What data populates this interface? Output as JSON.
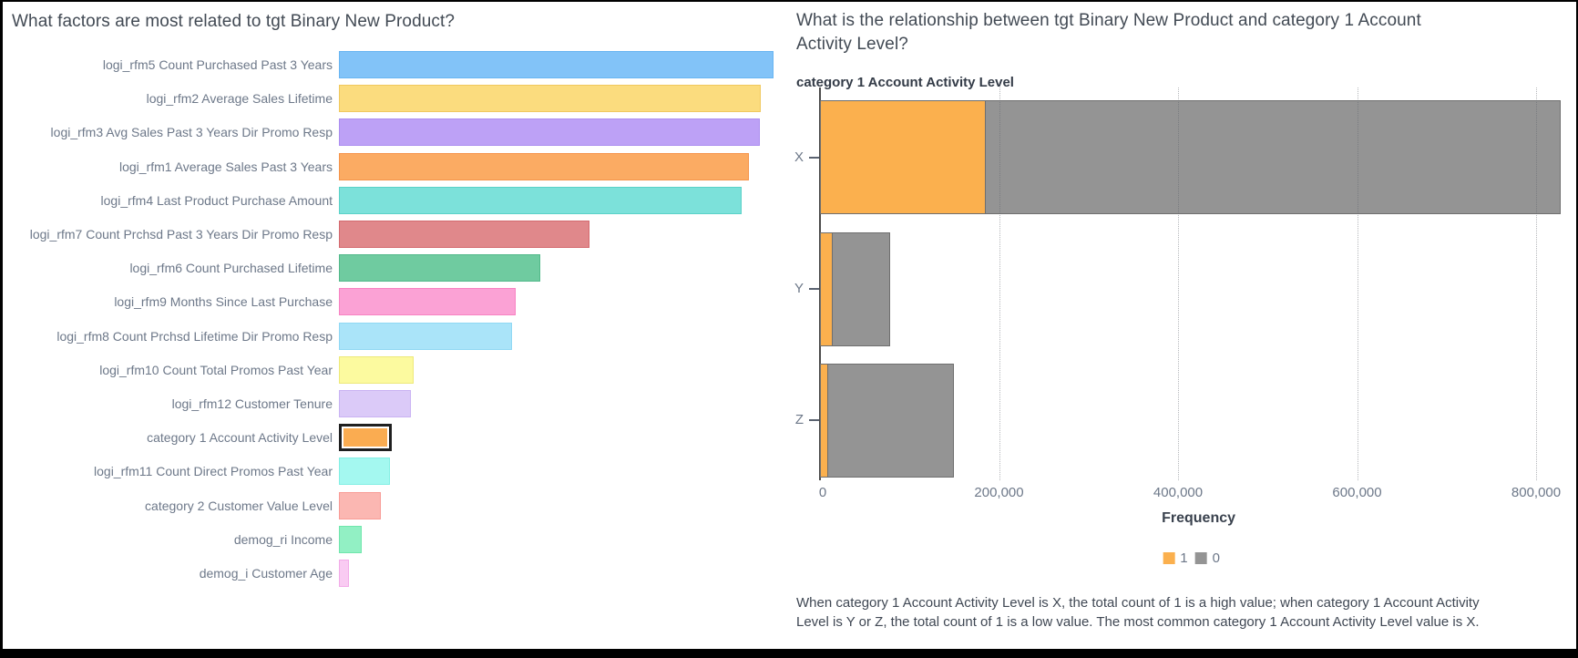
{
  "left_panel": {
    "title": "What factors are most related to tgt Binary New Product?"
  },
  "right_panel": {
    "title": "What is the relationship between tgt Binary New Product and category 1 Account Activity Level?",
    "chart_label": "category 1 Account Activity Level",
    "insight_text": "When category 1 Account Activity Level is X, the total count of 1 is a high value; when category 1 Account Activity Level is Y or Z, the total count of 1 is a low value. The most common category 1 Account Activity Level value is X."
  },
  "chart_data": [
    {
      "type": "bar",
      "orientation": "horizontal",
      "title": "What factors are most related to tgt Binary New Product?",
      "value_meaning": "relative importance (no numeric axis shown)",
      "categories": [
        "logi_rfm5 Count Purchased Past 3 Years",
        "logi_rfm2 Average Sales Lifetime",
        "logi_rfm3 Avg Sales Past 3 Years Dir Promo Resp",
        "logi_rfm1 Average Sales Past 3 Years",
        "logi_rfm4 Last Product Purchase Amount",
        "logi_rfm7 Count Prchsd Past 3 Years Dir Promo Resp",
        "logi_rfm6 Count Purchased Lifetime",
        "logi_rfm9 Months Since Last Purchase",
        "logi_rfm8 Count Prchsd Lifetime Dir Promo Resp",
        "logi_rfm10 Count Total Promos Past Year",
        "logi_rfm12 Customer Tenure",
        "category 1 Account Activity Level",
        "logi_rfm11 Count Direct Promos Past Year",
        "category 2 Customer Value Level",
        "demog_ri Income",
        "demog_i Customer Age"
      ],
      "values": [
        1.0,
        0.971,
        0.969,
        0.943,
        0.927,
        0.577,
        0.463,
        0.407,
        0.398,
        0.172,
        0.166,
        0.122,
        0.117,
        0.096,
        0.052,
        0.023
      ],
      "fill_colors": [
        "#82C3F8",
        "#FBDC7E",
        "#BDA1F6",
        "#FBAB63",
        "#7CE1DA",
        "#E0888B",
        "#6FCBA0",
        "#FBA2D5",
        "#AAE4F9",
        "#FCFA9F",
        "#DBCAF8",
        "#FAAC51",
        "#A4F8F0",
        "#FBB7B2",
        "#92F0C4",
        "#F9CBF2"
      ],
      "border_colors": [
        "#68B5F2",
        "#F0C85E",
        "#AC8DF0",
        "#F5934A",
        "#5BD2C8",
        "#D4696E",
        "#52B98A",
        "#F782C2",
        "#90D8F4",
        "#EDE97A",
        "#C9B2F3",
        "#F5934A",
        "#83EFE4",
        "#F89B95",
        "#6FE6AC",
        "#F2ABE8"
      ],
      "selected_category": "category 1 Account Activity Level",
      "grid": "off",
      "legend": "none"
    },
    {
      "type": "bar",
      "subtype": "stacked",
      "orientation": "horizontal",
      "title": "category 1 Account Activity Level",
      "categories": [
        "X",
        "Y",
        "Z"
      ],
      "series": [
        {
          "name": "1",
          "color": "#FBB04E",
          "values": [
            185000,
            14000,
            9500
          ]
        },
        {
          "name": "0",
          "color": "#949494",
          "values": [
            642000,
            64000,
            140500
          ]
        }
      ],
      "xlabel": "Frequency",
      "xlim": [
        0,
        850000
      ],
      "xticks": [
        0,
        200000,
        400000,
        600000,
        800000
      ],
      "grid": "dotted vertical",
      "legend_position": "bottom-center"
    }
  ],
  "accent_colors": {
    "highlight_orange": "#FBB04E",
    "neutral_gray": "#949494",
    "selection_frame": "#1F1F1F"
  }
}
